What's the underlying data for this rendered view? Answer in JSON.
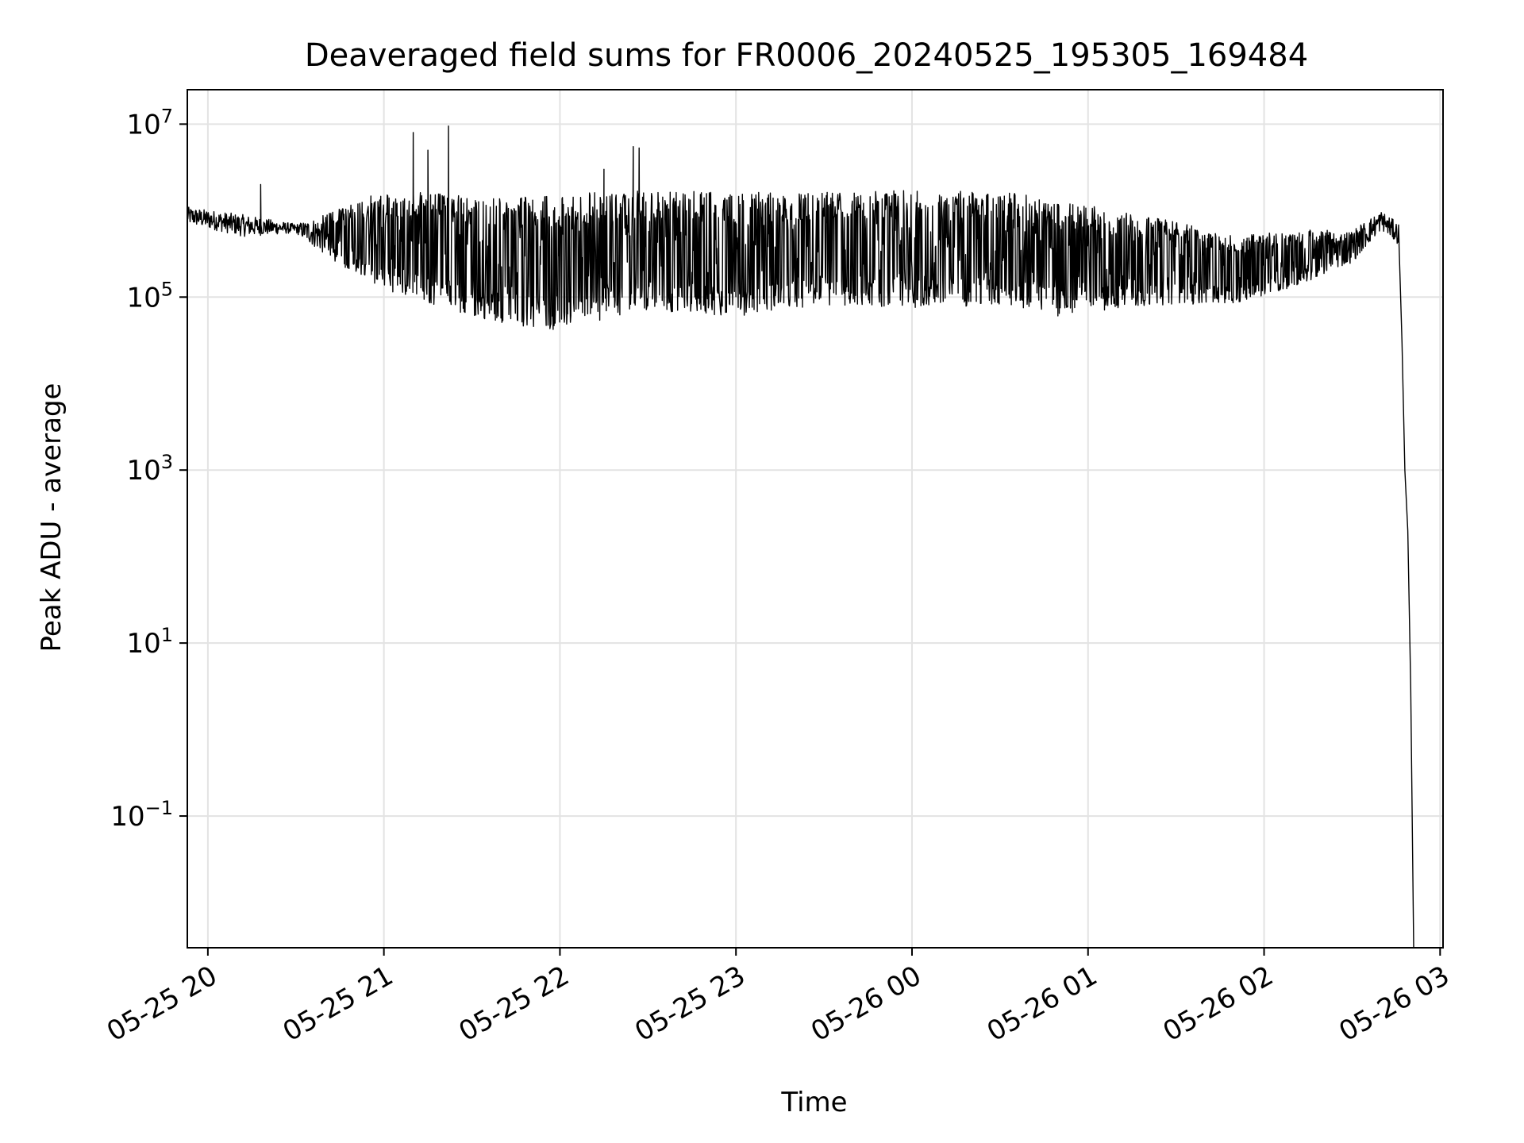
{
  "chart_data": {
    "type": "line",
    "title": "Deaveraged field sums for FR0006_20240525_195305_169484",
    "xlabel": "Time",
    "ylabel": "Peak ADU - average",
    "yscale": "log",
    "grid": true,
    "legend": "none",
    "xlim": [
      "2024-05-25 19:53",
      "2024-05-26 03:01"
    ],
    "ylim": [
      0.003,
      25000000
    ],
    "x_ticks": [
      {
        "value": "2024-05-25 20:00",
        "label": "05-25 20"
      },
      {
        "value": "2024-05-25 21:00",
        "label": "05-25 21"
      },
      {
        "value": "2024-05-25 22:00",
        "label": "05-25 22"
      },
      {
        "value": "2024-05-25 23:00",
        "label": "05-25 23"
      },
      {
        "value": "2024-05-26 00:00",
        "label": "05-26 00"
      },
      {
        "value": "2024-05-26 01:00",
        "label": "05-26 01"
      },
      {
        "value": "2024-05-26 02:00",
        "label": "05-26 02"
      },
      {
        "value": "2024-05-26 03:00",
        "label": "05-26 03"
      }
    ],
    "y_ticks": [
      {
        "value": 10000000,
        "base": "10",
        "exp": "7"
      },
      {
        "value": 100000,
        "base": "10",
        "exp": "5"
      },
      {
        "value": 1000,
        "base": "10",
        "exp": "3"
      },
      {
        "value": 10,
        "base": "10",
        "exp": "1"
      },
      {
        "value": 0.1,
        "base": "10",
        "exp": "−1"
      }
    ],
    "series": [
      {
        "color": "#000000",
        "envelope": [
          {
            "x": "2024-05-25 19:53",
            "low": 700000,
            "high": 1100000
          },
          {
            "x": "2024-05-25 20:12",
            "low": 500000,
            "high": 900000
          },
          {
            "x": "2024-05-25 20:30",
            "low": 550000,
            "high": 700000
          },
          {
            "x": "2024-05-25 20:40",
            "low": 300000,
            "high": 900000
          },
          {
            "x": "2024-05-25 21:00",
            "low": 120000,
            "high": 1700000
          },
          {
            "x": "2024-05-25 21:30",
            "low": 60000,
            "high": 1500000
          },
          {
            "x": "2024-05-25 21:55",
            "low": 40000,
            "high": 1500000
          },
          {
            "x": "2024-05-25 22:30",
            "low": 70000,
            "high": 1800000
          },
          {
            "x": "2024-05-25 23:00",
            "low": 60000,
            "high": 1600000
          },
          {
            "x": "2024-05-25 23:30",
            "low": 80000,
            "high": 1700000
          },
          {
            "x": "2024-05-26 00:00",
            "low": 75000,
            "high": 1700000
          },
          {
            "x": "2024-05-26 00:30",
            "low": 80000,
            "high": 1700000
          },
          {
            "x": "2024-05-26 00:50",
            "low": 60000,
            "high": 1300000
          },
          {
            "x": "2024-05-26 01:20",
            "low": 80000,
            "high": 900000
          },
          {
            "x": "2024-05-26 01:50",
            "low": 85000,
            "high": 500000
          },
          {
            "x": "2024-05-26 02:10",
            "low": 130000,
            "high": 600000
          },
          {
            "x": "2024-05-26 02:30",
            "low": 250000,
            "high": 600000
          },
          {
            "x": "2024-05-26 02:40",
            "low": 600000,
            "high": 1000000
          },
          {
            "x": "2024-05-26 02:46",
            "low": 400000,
            "high": 700000
          }
        ],
        "spikes": [
          {
            "x": "2024-05-25 20:18",
            "y": 2000000
          },
          {
            "x": "2024-05-25 21:10",
            "y": 8000000
          },
          {
            "x": "2024-05-25 21:15",
            "y": 5000000
          },
          {
            "x": "2024-05-25 21:22",
            "y": 9500000
          },
          {
            "x": "2024-05-25 22:15",
            "y": 3000000
          },
          {
            "x": "2024-05-25 22:25",
            "y": 5500000
          },
          {
            "x": "2024-05-25 22:27",
            "y": 5300000
          }
        ],
        "tail": [
          {
            "x": "2024-05-26 02:46",
            "y": 400000
          },
          {
            "x": "2024-05-26 02:47",
            "y": 30000
          },
          {
            "x": "2024-05-26 02:48",
            "y": 1000
          },
          {
            "x": "2024-05-26 02:49",
            "y": 200
          },
          {
            "x": "2024-05-26 02:50",
            "y": 3
          },
          {
            "x": "2024-05-26 02:51",
            "y": 0.003
          }
        ]
      }
    ]
  }
}
